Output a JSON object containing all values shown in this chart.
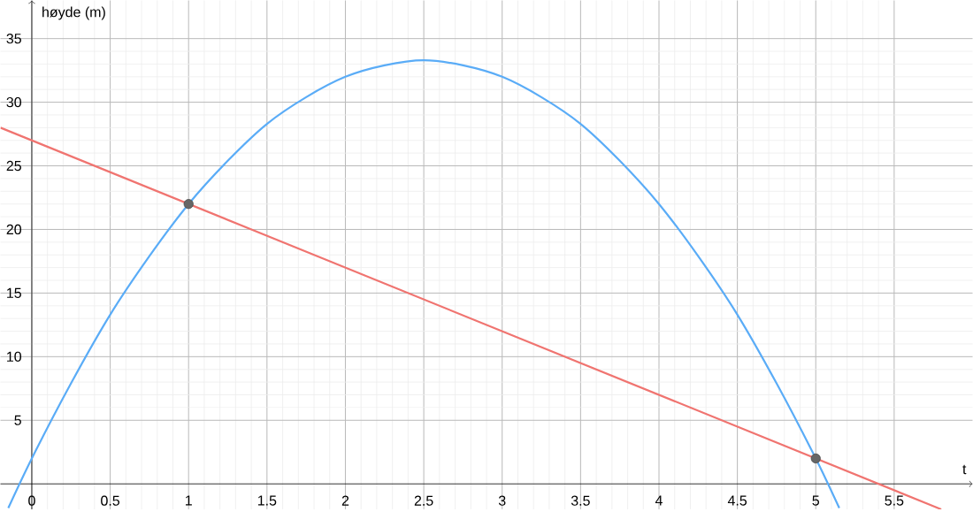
{
  "chart_data": {
    "type": "line",
    "xlabel": "t",
    "ylabel": "høyde (m)",
    "xlim": [
      -0.2,
      6
    ],
    "ylim": [
      -2,
      38
    ],
    "xticks": [
      0,
      0.5,
      1,
      1.5,
      2,
      2.5,
      3,
      3.5,
      4,
      4.5,
      5,
      5.5
    ],
    "yticks": [
      5,
      10,
      15,
      20,
      25,
      30,
      35
    ],
    "grid": true,
    "series": [
      {
        "color": "#5aacf7",
        "x": [
          -0.15,
          0,
          0.25,
          0.5,
          0.75,
          1,
          1.25,
          1.5,
          1.75,
          2,
          2.25,
          2.5,
          2.75,
          3,
          3.25,
          3.5,
          3.75,
          4,
          4.25,
          4.5,
          4.75,
          5,
          5.15
        ],
        "values": [
          -1.9,
          2,
          7.9,
          13.3,
          17.9,
          22,
          25.4,
          28.3,
          30.4,
          32,
          32.9,
          33.3,
          32.9,
          32,
          30.4,
          28.3,
          25.4,
          22,
          17.9,
          13.3,
          7.9,
          2,
          -1.9
        ]
      },
      {
        "color": "#f07470",
        "x": [
          -0.2,
          5.8
        ],
        "values": [
          28,
          -2
        ]
      },
      {
        "type": "scatter",
        "color": "#666666",
        "marker": "circle",
        "x": [
          1,
          5
        ],
        "values": [
          22,
          2
        ]
      }
    ]
  }
}
